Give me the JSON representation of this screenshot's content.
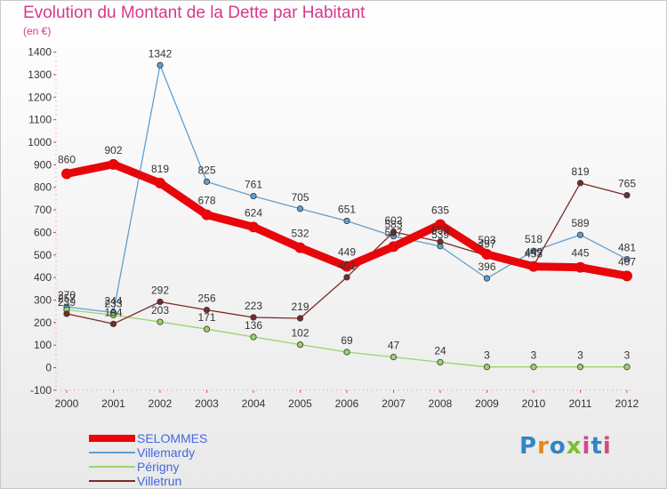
{
  "title": "Evolution du Montant de la Dette par Habitant",
  "unit_label": "(en €)",
  "logo": "Proxiti",
  "chart_data": {
    "type": "line",
    "categories": [
      "2000",
      "2001",
      "2002",
      "2003",
      "2004",
      "2005",
      "2006",
      "2007",
      "2008",
      "2009",
      "2010",
      "2011",
      "2012"
    ],
    "ylim": [
      -100,
      1400
    ],
    "yticks": [
      -100,
      0,
      100,
      200,
      300,
      400,
      500,
      600,
      700,
      800,
      900,
      1000,
      1100,
      1200,
      1300,
      1400
    ],
    "grid": false,
    "legend_position": "bottom-left",
    "series": [
      {
        "name": "SELOMMES",
        "color": "#e8060b",
        "values": [
          860,
          902,
          819,
          678,
          624,
          532,
          449,
          537,
          635,
          503,
          449,
          445,
          407
        ]
      },
      {
        "name": "Villemardy",
        "color": "#5f9fd1",
        "values": [
          270,
          244,
          1342,
          825,
          761,
          705,
          651,
          583,
          539,
          396,
          518,
          589,
          481
        ]
      },
      {
        "name": "Périgny",
        "color": "#9ad46a",
        "values": [
          257,
          233,
          203,
          171,
          136,
          102,
          69,
          47,
          24,
          3,
          3,
          3,
          3
        ]
      },
      {
        "name": "Villetrun",
        "color": "#7a2a2a",
        "values": [
          239,
          194,
          292,
          256,
          223,
          219,
          401,
          602,
          559,
          497,
          453,
          819,
          765
        ]
      }
    ]
  }
}
